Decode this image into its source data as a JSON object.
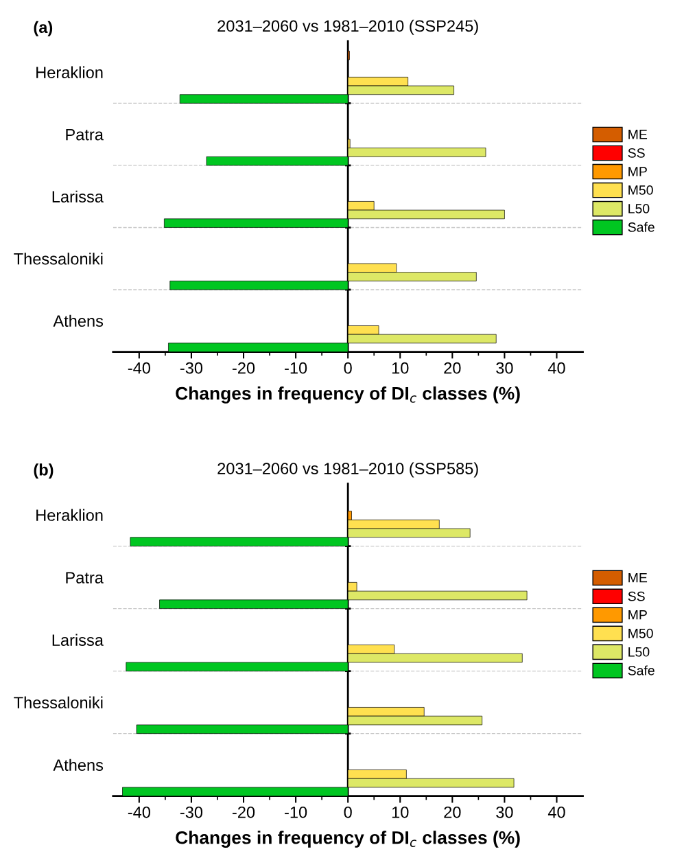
{
  "chart_data": [
    {
      "type": "bar",
      "orientation": "horizontal",
      "title": "2031–2060 vs 1981–2010 (SSP245)",
      "xlabel": "Changes in frequency of DI$_{c}$ classes (%)",
      "annotations": [
        "(a)"
      ],
      "categories": [
        "Heraklion",
        "Patra",
        "Larissa",
        "Thessaloniki",
        "Athens"
      ],
      "series": [
        {
          "name": "ME",
          "color": "#d45d00",
          "values": [
            0.3,
            null,
            null,
            null,
            null
          ]
        },
        {
          "name": "SS",
          "color": "#ff0000",
          "values": [
            null,
            null,
            null,
            null,
            null
          ]
        },
        {
          "name": "MP",
          "color": "#ff9900",
          "values": [
            null,
            null,
            null,
            null,
            null
          ]
        },
        {
          "name": "M50",
          "color": "#ffe050",
          "values": [
            11.5,
            0.4,
            5.0,
            9.3,
            5.9
          ]
        },
        {
          "name": "L50",
          "color": "#dde866",
          "values": [
            20.3,
            26.4,
            30.0,
            24.6,
            28.4
          ]
        },
        {
          "name": "Safe",
          "color": "#00c621",
          "values": [
            -32.2,
            -27.1,
            -35.2,
            -34.1,
            -34.4
          ]
        }
      ],
      "xlim": [
        -45,
        45
      ],
      "xticks": [
        -40,
        -30,
        -20,
        -10,
        0,
        10,
        20,
        30,
        40
      ],
      "grid": "y",
      "legend": "right"
    },
    {
      "type": "bar",
      "orientation": "horizontal",
      "title": "2031–2060 vs 1981–2010 (SSP585)",
      "xlabel": "Changes in frequency of DI$_{c}$ classes (%)",
      "annotations": [
        "(b)"
      ],
      "categories": [
        "Heraklion",
        "Patra",
        "Larissa",
        "Thessaloniki",
        "Athens"
      ],
      "series": [
        {
          "name": "ME",
          "color": "#d45d00",
          "values": [
            null,
            null,
            null,
            null,
            null
          ]
        },
        {
          "name": "SS",
          "color": "#ff0000",
          "values": [
            null,
            null,
            null,
            null,
            null
          ]
        },
        {
          "name": "MP",
          "color": "#ff9900",
          "values": [
            0.7,
            null,
            null,
            null,
            null
          ]
        },
        {
          "name": "M50",
          "color": "#ffe050",
          "values": [
            17.5,
            1.7,
            8.9,
            14.6,
            11.2
          ]
        },
        {
          "name": "L50",
          "color": "#dde866",
          "values": [
            23.4,
            34.3,
            33.4,
            25.7,
            31.8
          ]
        },
        {
          "name": "Safe",
          "color": "#00c621",
          "values": [
            -41.7,
            -36.1,
            -42.5,
            -40.5,
            -43.2
          ]
        }
      ],
      "xlim": [
        -45,
        45
      ],
      "xticks": [
        -40,
        -30,
        -20,
        -10,
        0,
        10,
        20,
        30,
        40
      ],
      "grid": "y",
      "legend": "right"
    }
  ]
}
